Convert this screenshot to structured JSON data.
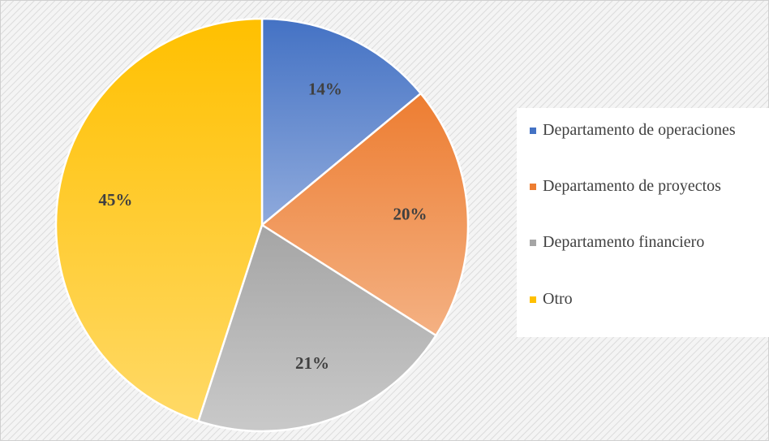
{
  "chart_data": {
    "type": "pie",
    "categories": [
      "Departamento de operaciones",
      "Departamento de proyectos",
      "Departamento financiero",
      "Otro"
    ],
    "values": [
      14,
      20,
      21,
      45
    ],
    "value_labels": [
      "14%",
      "20%",
      "21%",
      "45%"
    ],
    "colors": [
      "#4472c4",
      "#ed7d31",
      "#a5a5a5",
      "#ffc000"
    ],
    "legend": "right"
  }
}
